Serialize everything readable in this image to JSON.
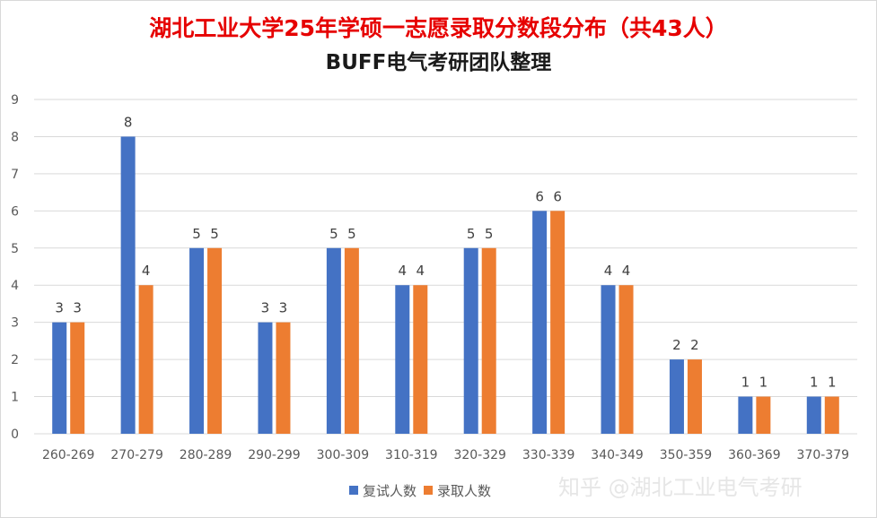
{
  "title": "湖北工业大学25年学硕一志愿录取分数段分布（共43人）",
  "subtitle": "BUFF电气考研团队整理",
  "watermark": "知乎 @湖北工业电气考研",
  "colors": {
    "series1": "#4472c4",
    "series2": "#ed7d31",
    "title": "#e60000",
    "grid": "#d9d9d9"
  },
  "chart_data": {
    "type": "bar",
    "title": "湖北工业大学25年学硕一志愿录取分数段分布（共43人）",
    "subtitle": "BUFF电气考研团队整理",
    "categories": [
      "260-269",
      "270-279",
      "280-289",
      "290-299",
      "300-309",
      "310-319",
      "320-329",
      "330-339",
      "340-349",
      "350-359",
      "360-369",
      "370-379"
    ],
    "series": [
      {
        "name": "复试人数",
        "values": [
          3,
          8,
          5,
          3,
          5,
          4,
          5,
          6,
          4,
          2,
          1,
          1
        ]
      },
      {
        "name": "录取人数",
        "values": [
          3,
          4,
          5,
          3,
          5,
          4,
          5,
          6,
          4,
          2,
          1,
          1
        ]
      }
    ],
    "ylim": [
      0,
      9
    ],
    "yticks": [
      0,
      1,
      2,
      3,
      4,
      5,
      6,
      7,
      8,
      9
    ],
    "grid": true,
    "legend_position": "bottom",
    "xlabel": "",
    "ylabel": ""
  }
}
